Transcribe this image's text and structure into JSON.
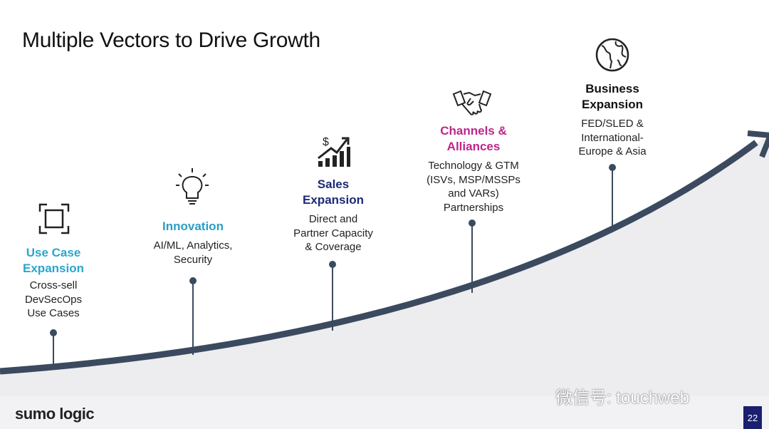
{
  "slide": {
    "title": "Multiple Vectors to Drive Growth",
    "page_number": "22"
  },
  "footer": {
    "logo": "sumo logic",
    "watermark": "微信号: touchweb"
  },
  "colors": {
    "curve": "#3b4a5e",
    "use_case": "#2aa6cc",
    "innovation": "#2a9ec4",
    "sales": "#1c2a78",
    "channels": "#c0248a",
    "business": "#111111"
  },
  "steps": [
    {
      "title": "Use Case Expansion",
      "lines": [
        "Cross-sell",
        "DevSecOps",
        "Use Cases"
      ],
      "icon": "focus-frame-icon"
    },
    {
      "title": "Innovation",
      "lines": [
        "AI/ML, Analytics,",
        "Security"
      ],
      "icon": "lightbulb-icon"
    },
    {
      "title": "Sales Expansion",
      "lines": [
        "Direct and",
        "Partner Capacity",
        "& Coverage"
      ],
      "icon": "dollar-growth-chart-icon"
    },
    {
      "title": "Channels & Alliances",
      "lines": [
        "Technology & GTM",
        "(ISVs, MSP/MSSPs",
        "and VARs)",
        "Partnerships"
      ],
      "icon": "handshake-icon"
    },
    {
      "title": "Business Expansion",
      "lines": [
        "FED/SLED &",
        "International-",
        "Europe & Asia"
      ],
      "icon": "globe-icon"
    }
  ]
}
